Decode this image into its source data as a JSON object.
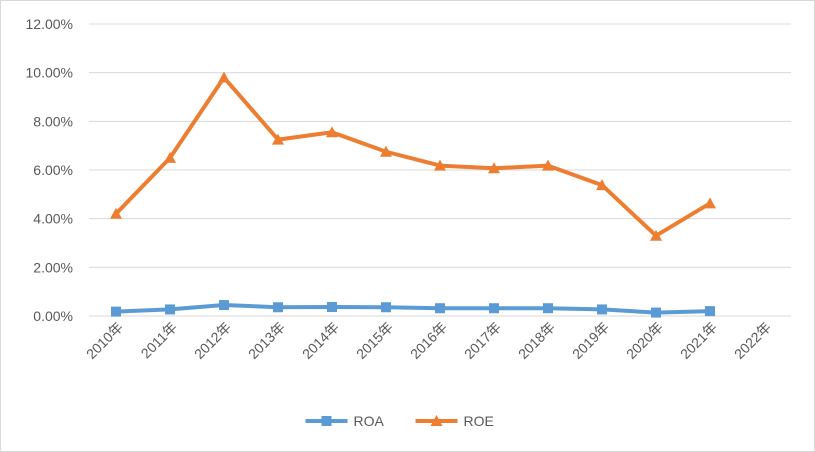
{
  "chart_data": {
    "type": "line",
    "title": "",
    "xlabel": "",
    "ylabel": "",
    "categories": [
      "2010年",
      "2011年",
      "2012年",
      "2013年",
      "2014年",
      "2015年",
      "2016年",
      "2017年",
      "2018年",
      "2019年",
      "2020年",
      "2021年",
      "2022年"
    ],
    "ylim": [
      0,
      12
    ],
    "yticks": [
      "0.00%",
      "2.00%",
      "4.00%",
      "6.00%",
      "8.00%",
      "10.00%",
      "12.00%"
    ],
    "grid": true,
    "legend_position": "bottom",
    "series": [
      {
        "name": "ROA",
        "color": "#5b9bd5",
        "marker": "square",
        "values": [
          0.18,
          0.27,
          0.45,
          0.36,
          0.37,
          0.36,
          0.32,
          0.32,
          0.32,
          0.27,
          0.14,
          0.2,
          null
        ]
      },
      {
        "name": "ROE",
        "color": "#ed7d31",
        "marker": "triangle",
        "values": [
          4.2,
          6.5,
          9.8,
          7.25,
          7.55,
          6.75,
          6.18,
          6.07,
          6.18,
          5.38,
          3.3,
          4.63,
          null
        ]
      }
    ]
  }
}
